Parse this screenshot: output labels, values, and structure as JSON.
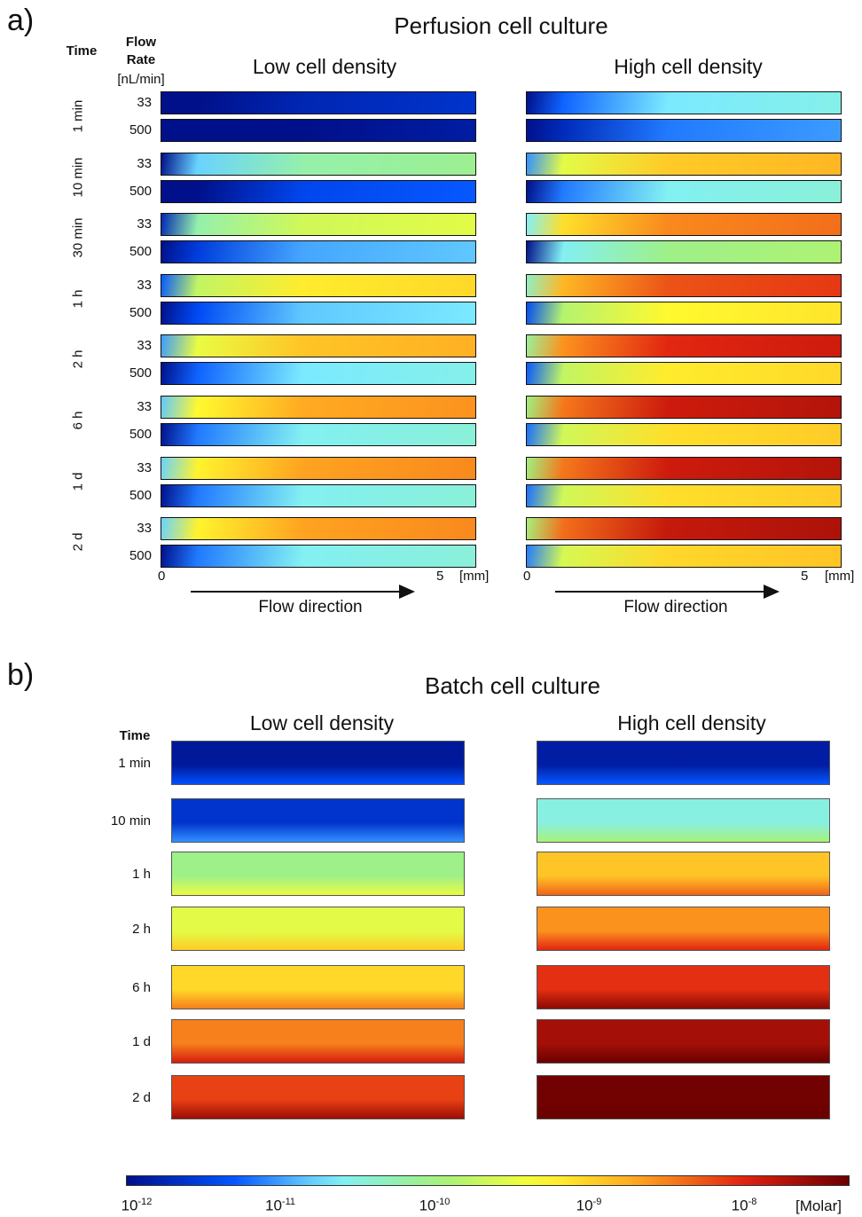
{
  "panel_a": {
    "label": "a)",
    "title": "Perfusion cell culture",
    "time_header": "Time",
    "flow_header_line1": "Flow",
    "flow_header_line2": "Rate",
    "flow_header_unit": "[nL/min]",
    "low_title": "Low cell density",
    "high_title": "High cell density",
    "flow_direction": "Flow direction",
    "x_start": "0",
    "x_end": "5",
    "x_unit": "[mm]",
    "times": [
      "1 min",
      "10 min",
      "30 min",
      "1 h",
      "2 h",
      "6 h",
      "1 d",
      "2 d"
    ],
    "flow_rates": [
      "33",
      "500"
    ],
    "low_density_levels": [
      [
        0.05,
        0.0
      ],
      [
        0.38,
        0.12
      ],
      [
        0.5,
        0.22
      ],
      [
        0.6,
        0.25
      ],
      [
        0.66,
        0.28
      ],
      [
        0.7,
        0.3
      ],
      [
        0.71,
        0.3
      ],
      [
        0.71,
        0.3
      ]
    ],
    "high_density_levels": [
      [
        0.28,
        0.18
      ],
      [
        0.65,
        0.3
      ],
      [
        0.74,
        0.42
      ],
      [
        0.8,
        0.58
      ],
      [
        0.85,
        0.6
      ],
      [
        0.88,
        0.62
      ],
      [
        0.88,
        0.62
      ],
      [
        0.89,
        0.63
      ]
    ]
  },
  "panel_b": {
    "label": "b)",
    "title": "Batch cell culture",
    "time_header": "Time",
    "low_title": "Low cell density",
    "high_title": "High cell density",
    "times": [
      "1 min",
      "10 min",
      "1 h",
      "2 h",
      "6 h",
      "1 d",
      "2 d"
    ],
    "low_density_levels": [
      0.02,
      0.08,
      0.42,
      0.53,
      0.63,
      0.75,
      0.82
    ],
    "high_density_levels": [
      0.03,
      0.32,
      0.66,
      0.73,
      0.84,
      0.93,
      0.99
    ]
  },
  "colorbar": {
    "tick_base": "10",
    "tick_exponents": [
      "-12",
      "-11",
      "-10",
      "-9",
      "-8"
    ],
    "unit": "[Molar]",
    "colors": [
      "#00108a",
      "#0050ff",
      "#80f0ff",
      "#a0f080",
      "#ffff30",
      "#ffa020",
      "#e02010",
      "#6a0000"
    ]
  }
}
